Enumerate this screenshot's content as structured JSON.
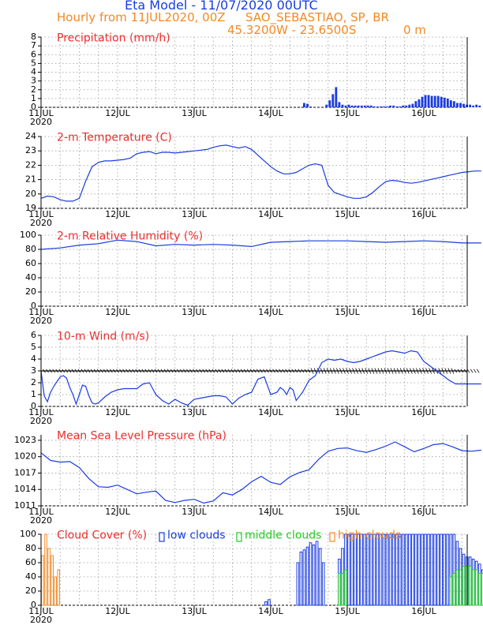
{
  "header": {
    "title": "Eta Model - 11/07/2020 00UTC",
    "subtitle": "Hourly from 11JUL2020, 00Z",
    "station": "SAO_SEBASTIAO, SP, BR",
    "coords": "45.3200W - 23.6500S",
    "elevation": "0 m"
  },
  "colors": {
    "title": "#1a3ce0",
    "header": "#f08a28",
    "panel_title": "#ee2b2b",
    "series": "#1a3ce0",
    "low_clouds": "#1a3ce0",
    "middle_clouds": "#22cc22",
    "high_clouds": "#f08a28",
    "axis": "#000000",
    "grid": "#9a9a9a"
  },
  "chart_data": [
    {
      "type": "bar",
      "title": "Precipitation (mm/h)",
      "ylim": [
        0,
        8
      ],
      "yticks": [
        0,
        1,
        2,
        3,
        4,
        5,
        6,
        7,
        8
      ],
      "xticks": [
        "11JUL",
        "12JUL",
        "13JUL",
        "14JUL",
        "15JUL",
        "16JUL"
      ],
      "year_label": "2020",
      "x_hours": [
        82,
        83,
        84,
        89,
        90,
        91,
        92,
        93,
        94,
        95,
        96,
        97,
        98,
        99,
        100,
        101,
        102,
        103,
        104,
        105,
        106,
        107,
        108,
        109,
        110,
        111,
        112,
        113,
        114,
        115,
        116,
        117,
        118,
        119,
        120,
        121,
        122,
        123,
        124,
        125,
        126,
        127,
        128,
        129,
        130,
        131,
        132,
        133,
        134,
        135,
        136,
        137
      ],
      "values": [
        0.5,
        0.4,
        0.1,
        0.3,
        0.8,
        1.5,
        2.3,
        0.6,
        0.3,
        0.2,
        0.3,
        0.2,
        0.2,
        0.2,
        0.2,
        0.2,
        0.2,
        0.2,
        0.1,
        0.1,
        0.1,
        0.1,
        0.1,
        0.2,
        0.2,
        0.1,
        0.1,
        0.2,
        0.2,
        0.3,
        0.4,
        0.7,
        0.9,
        1.2,
        1.4,
        1.4,
        1.3,
        1.3,
        1.3,
        1.2,
        1.1,
        1.0,
        0.8,
        0.7,
        0.5,
        0.5,
        0.4,
        0.3,
        0.3,
        0.2,
        0.3,
        0.2
      ]
    },
    {
      "type": "line",
      "title": "2-m Temperature (C)",
      "ylim": [
        19,
        24
      ],
      "yticks": [
        19,
        20,
        21,
        22,
        23,
        24
      ],
      "xticks": [
        "11JUL",
        "12JUL",
        "13JUL",
        "14JUL",
        "15JUL",
        "16JUL"
      ],
      "year_label": "2020",
      "x_hours": [
        0,
        2,
        4,
        6,
        8,
        10,
        12,
        14,
        16,
        18,
        20,
        22,
        24,
        26,
        28,
        30,
        32,
        34,
        36,
        38,
        40,
        42,
        44,
        46,
        48,
        50,
        52,
        54,
        56,
        58,
        60,
        62,
        64,
        66,
        68,
        70,
        72,
        74,
        76,
        78,
        80,
        82,
        84,
        86,
        88,
        90,
        92,
        94,
        96,
        98,
        100,
        102,
        104,
        106,
        108,
        110,
        112,
        114,
        116,
        118,
        120,
        122,
        124,
        126,
        128,
        130,
        132,
        134,
        136,
        138
      ],
      "values": [
        19.7,
        19.85,
        19.8,
        19.6,
        19.5,
        19.5,
        19.7,
        20.9,
        21.9,
        22.2,
        22.3,
        22.3,
        22.35,
        22.4,
        22.5,
        22.8,
        22.9,
        22.95,
        22.8,
        22.9,
        22.9,
        22.85,
        22.9,
        22.95,
        23.0,
        23.05,
        23.1,
        23.25,
        23.35,
        23.4,
        23.3,
        23.2,
        23.3,
        23.1,
        22.7,
        22.3,
        21.9,
        21.6,
        21.4,
        21.4,
        21.5,
        21.75,
        22.0,
        22.1,
        22.0,
        20.6,
        20.1,
        19.95,
        19.8,
        19.7,
        19.7,
        19.8,
        20.1,
        20.5,
        20.85,
        20.95,
        20.9,
        20.8,
        20.75,
        20.8,
        20.9,
        21.0,
        21.1,
        21.2,
        21.3,
        21.4,
        21.5,
        21.55,
        21.6,
        21.6
      ]
    },
    {
      "type": "line",
      "title": "2-m Relative Humidity (%)",
      "ylim": [
        0,
        100
      ],
      "yticks": [
        0,
        20,
        40,
        60,
        80,
        100
      ],
      "xticks": [
        "11JUL",
        "12JUL",
        "13JUL",
        "14JUL",
        "15JUL",
        "16JUL"
      ],
      "year_label": "2020",
      "x_hours": [
        0,
        6,
        12,
        18,
        24,
        30,
        36,
        42,
        48,
        54,
        60,
        66,
        72,
        78,
        84,
        90,
        96,
        102,
        108,
        114,
        120,
        126,
        132,
        138
      ],
      "values": [
        80,
        82,
        86,
        88,
        93,
        91,
        85,
        87,
        86,
        87,
        86,
        84,
        90,
        91,
        92,
        92,
        92,
        91,
        90,
        91,
        92,
        91,
        89,
        89
      ]
    },
    {
      "type": "line",
      "title": "10-m Wind (m/s)",
      "ylim": [
        0,
        6
      ],
      "yticks": [
        0,
        1,
        2,
        3,
        4,
        5,
        6
      ],
      "xticks": [
        "11JUL",
        "12JUL",
        "13JUL",
        "14JUL",
        "15JUL",
        "16JUL"
      ],
      "year_label": "2020",
      "direction_baseline": 3,
      "x_hours": [
        0,
        1,
        2,
        3,
        4,
        5,
        6,
        7,
        8,
        9,
        10,
        11,
        12,
        13,
        14,
        15,
        16,
        17,
        18,
        20,
        22,
        24,
        26,
        28,
        30,
        32,
        34,
        36,
        38,
        40,
        42,
        44,
        46,
        48,
        50,
        52,
        54,
        56,
        58,
        60,
        62,
        64,
        66,
        68,
        70,
        72,
        74,
        75,
        76,
        77,
        78,
        79,
        80,
        82,
        84,
        86,
        88,
        90,
        92,
        94,
        96,
        98,
        100,
        102,
        104,
        106,
        108,
        110,
        112,
        114,
        116,
        118,
        120,
        122,
        124,
        126,
        128,
        130,
        132,
        134,
        136,
        138
      ],
      "values": [
        3.0,
        0.9,
        0.4,
        1.2,
        1.7,
        2.1,
        2.5,
        2.6,
        2.4,
        1.6,
        1.0,
        0.2,
        1.0,
        1.8,
        1.7,
        0.9,
        0.3,
        0.2,
        0.3,
        0.8,
        1.2,
        1.4,
        1.5,
        1.5,
        1.5,
        1.9,
        2.0,
        1.0,
        0.5,
        0.2,
        0.6,
        0.3,
        0.1,
        0.6,
        0.7,
        0.8,
        0.9,
        0.9,
        0.8,
        0.2,
        0.7,
        1.0,
        1.2,
        2.3,
        2.5,
        1.0,
        1.2,
        1.6,
        1.4,
        1.0,
        1.6,
        1.4,
        0.5,
        1.2,
        2.2,
        2.6,
        3.7,
        4.0,
        3.9,
        4.0,
        3.8,
        3.7,
        3.8,
        4.0,
        4.2,
        4.4,
        4.6,
        4.7,
        4.6,
        4.5,
        4.7,
        4.6,
        3.8,
        3.4,
        3.0,
        2.6,
        2.2,
        1.9,
        1.9,
        1.9,
        1.9,
        1.9
      ]
    },
    {
      "type": "line",
      "title": "Mean Sea Level Pressure (hPa)",
      "ylim": [
        1011,
        1024
      ],
      "yticks": [
        1011,
        1014,
        1017,
        1020,
        1023
      ],
      "xticks": [
        "11JUL",
        "12JUL",
        "13JUL",
        "14JUL",
        "15JUL",
        "16JUL"
      ],
      "year_label": "2020",
      "x_hours": [
        0,
        3,
        6,
        9,
        12,
        15,
        18,
        21,
        24,
        27,
        30,
        33,
        36,
        39,
        42,
        45,
        48,
        51,
        54,
        57,
        60,
        63,
        66,
        69,
        72,
        75,
        78,
        81,
        84,
        87,
        90,
        93,
        96,
        99,
        102,
        105,
        108,
        111,
        114,
        117,
        120,
        123,
        126,
        129,
        132,
        135,
        138
      ],
      "values": [
        1020.7,
        1019.3,
        1019.0,
        1019.1,
        1018.0,
        1016.0,
        1014.5,
        1014.4,
        1014.8,
        1014.0,
        1013.2,
        1013.5,
        1013.7,
        1012.0,
        1011.6,
        1012.0,
        1012.2,
        1011.5,
        1011.9,
        1013.4,
        1013.0,
        1014.0,
        1015.4,
        1016.4,
        1015.3,
        1014.9,
        1016.3,
        1017.1,
        1017.6,
        1019.5,
        1021.0,
        1021.5,
        1021.6,
        1021.1,
        1020.8,
        1021.3,
        1021.9,
        1022.7,
        1021.8,
        1020.9,
        1021.5,
        1022.2,
        1022.4,
        1021.8,
        1021.1,
        1021.0,
        1021.2
      ]
    },
    {
      "type": "bar",
      "title": "Cloud Cover (%)",
      "ylim": [
        0,
        100
      ],
      "yticks": [
        0,
        20,
        40,
        60,
        80,
        100
      ],
      "xticks": [
        "11JUL",
        "12JUL",
        "13JUL",
        "14JUL",
        "15JUL",
        "16JUL"
      ],
      "year_label": "2020",
      "legend": [
        "low clouds",
        "middle clouds",
        "high clouds"
      ],
      "series": [
        {
          "name": "low clouds",
          "x_hours": [
            70,
            71,
            80,
            81,
            82,
            83,
            84,
            85,
            86,
            87,
            88,
            93,
            94,
            95,
            96,
            97,
            98,
            99,
            100,
            101,
            102,
            103,
            104,
            105,
            106,
            107,
            108,
            109,
            110,
            111,
            112,
            113,
            114,
            115,
            116,
            117,
            118,
            119,
            120,
            121,
            122,
            123,
            124,
            125,
            126,
            127,
            128,
            129,
            130,
            131,
            132,
            133,
            134,
            135,
            136,
            137,
            138
          ],
          "values": [
            5,
            8,
            60,
            75,
            78,
            82,
            88,
            85,
            90,
            80,
            60,
            65,
            80,
            100,
            100,
            100,
            100,
            100,
            100,
            100,
            100,
            100,
            100,
            100,
            100,
            100,
            100,
            100,
            100,
            100,
            100,
            100,
            100,
            100,
            100,
            100,
            100,
            100,
            100,
            100,
            100,
            100,
            100,
            100,
            100,
            100,
            100,
            100,
            90,
            80,
            72,
            68,
            68,
            65,
            62,
            58,
            50
          ]
        },
        {
          "name": "middle clouds",
          "x_hours": [
            93,
            94,
            95,
            128,
            129,
            130,
            131,
            132,
            133,
            134,
            135,
            136,
            137,
            138
          ],
          "values": [
            45,
            45,
            50,
            40,
            45,
            50,
            50,
            55,
            55,
            55,
            50,
            50,
            45,
            45
          ]
        },
        {
          "name": "high clouds",
          "x_hours": [
            0,
            1,
            2,
            3,
            4,
            5
          ],
          "values": [
            70,
            100,
            80,
            70,
            40,
            50
          ]
        }
      ]
    }
  ]
}
